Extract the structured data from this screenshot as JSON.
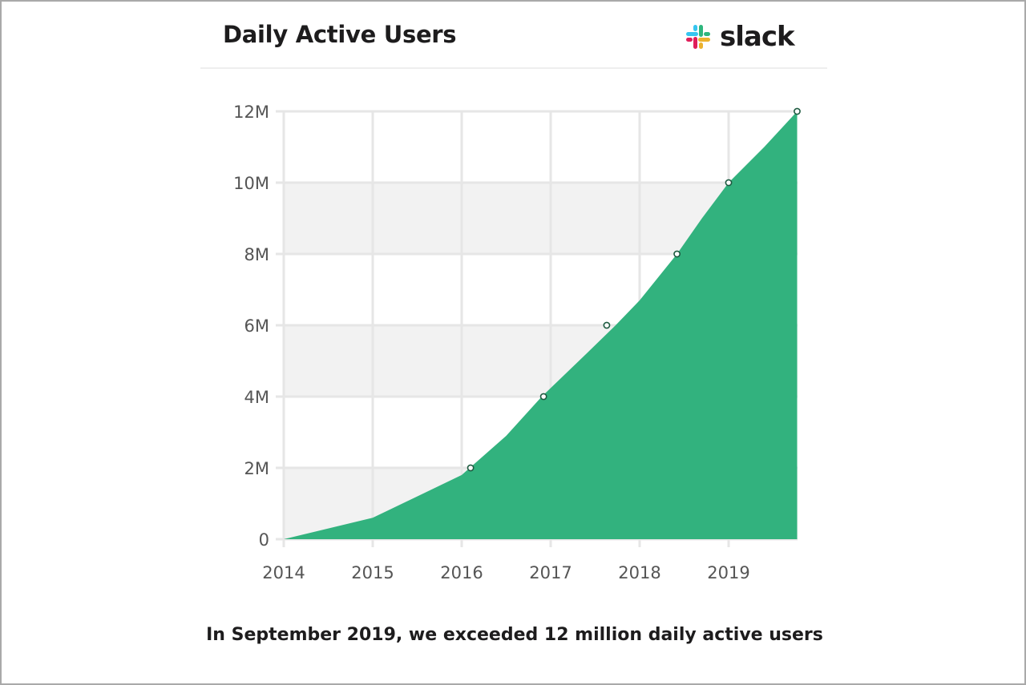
{
  "header": {
    "title": "Daily Active Users",
    "brand": "slack",
    "brand_logo_icon": "slack-logo-icon"
  },
  "caption": "In September 2019, we exceeded 12 million daily active users",
  "colors": {
    "area": "#2bb07a",
    "grid": "#e6e6e6",
    "band": "#f2f2f2",
    "text": "#1d1c1d",
    "tick": "#555555",
    "slack_blue": "#36c5f0",
    "slack_green": "#2eb67d",
    "slack_yellow": "#ecb22e",
    "slack_red": "#e01e5a"
  },
  "chart_data": {
    "type": "area",
    "title": "Daily Active Users",
    "xlabel": "",
    "ylabel": "",
    "x_ticks": [
      "2014",
      "2015",
      "2016",
      "2017",
      "2018",
      "2019"
    ],
    "y_ticks": [
      "0",
      "2M",
      "4M",
      "6M",
      "8M",
      "10M",
      "12M"
    ],
    "xlim": [
      2014,
      2019.77
    ],
    "ylim": [
      0,
      12000000
    ],
    "grid": true,
    "banded_background": true,
    "series": [
      {
        "x": [
          2014.0,
          2015.0,
          2015.5,
          2016.0,
          2016.5,
          2016.9,
          2017.4,
          2017.73,
          2018.0,
          2018.42,
          2018.7,
          2019.0,
          2019.4,
          2019.77
        ],
        "y": [
          0,
          600000,
          1200000,
          1800000,
          2900000,
          4000000,
          5200000,
          6000000,
          6700000,
          8000000,
          9000000,
          10000000,
          11000000,
          12000000
        ]
      }
    ],
    "marked_points": [
      {
        "x": 2016.1,
        "y": 2000000
      },
      {
        "x": 2016.92,
        "y": 4000000
      },
      {
        "x": 2017.63,
        "y": 6000000
      },
      {
        "x": 2018.42,
        "y": 8000000
      },
      {
        "x": 2019.0,
        "y": 10000000
      },
      {
        "x": 2019.77,
        "y": 12000000
      }
    ]
  }
}
